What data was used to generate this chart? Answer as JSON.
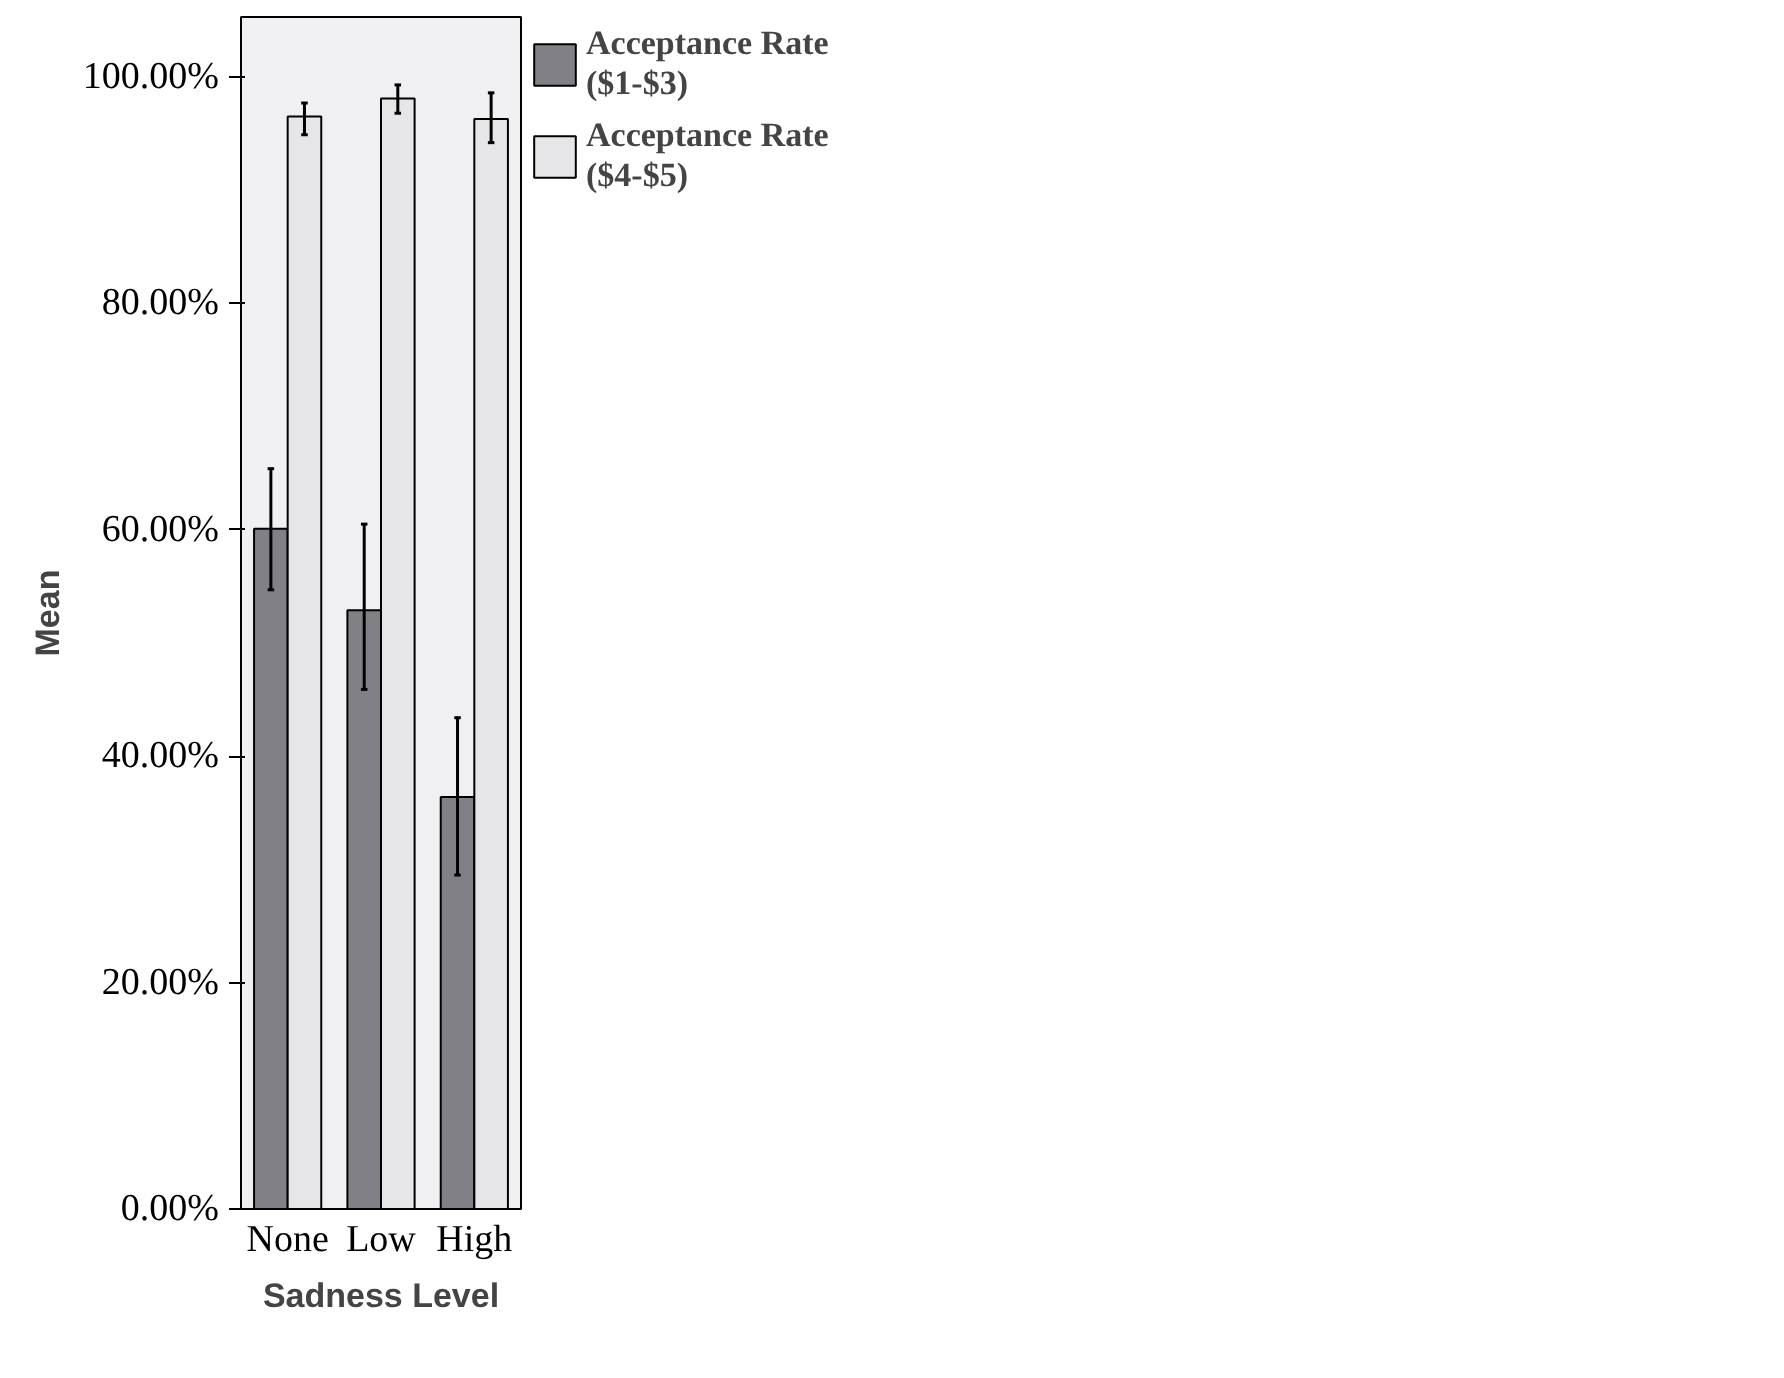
{
  "chart_data": {
    "type": "bar",
    "xlabel": "Sadness Level",
    "ylabel": "Mean",
    "categories": [
      "None",
      "Low",
      "High"
    ],
    "series": [
      {
        "name": "Acceptance Rate\n($1-$3)",
        "color": "#808086",
        "values": [
          60.1,
          52.9,
          36.4
        ],
        "errors": [
          [
            54.7,
            65.4
          ],
          [
            45.9,
            60.5
          ],
          [
            29.5,
            43.4
          ]
        ]
      },
      {
        "name": "Acceptance Rate\n($4-$5)",
        "color": "#e6e6e8",
        "values": [
          96.5,
          98.1,
          96.3
        ],
        "errors": [
          [
            94.9,
            97.7
          ],
          [
            96.8,
            99.3
          ],
          [
            94.2,
            98.6
          ]
        ]
      }
    ],
    "ylim": [
      0,
      105.3
    ],
    "yticks": [
      {
        "value": 0,
        "label": "0.00%"
      },
      {
        "value": 20,
        "label": "20.00%"
      },
      {
        "value": 40,
        "label": "40.00%"
      },
      {
        "value": 60,
        "label": "60.00%"
      },
      {
        "value": 80,
        "label": "80.00%"
      },
      {
        "value": 100,
        "label": "100.00%"
      }
    ],
    "grid": false,
    "legend": "top right"
  }
}
